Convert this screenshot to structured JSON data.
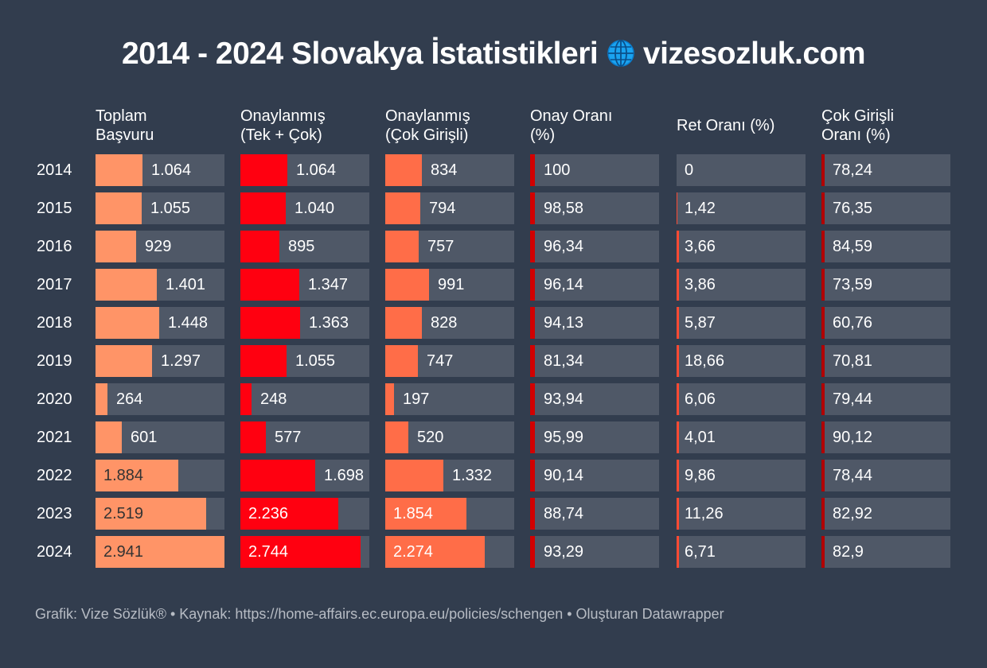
{
  "title": "2014 - 2024 Slovakya İstatistikleri",
  "title_suffix": "vizesozluk.com",
  "globe_icon": "globe-icon",
  "footer": "Grafik: Vize Sözlük® • Kaynak: https://home-affairs.ec.europa.eu/policies/schengen • Oluşturan Datawrapper",
  "colors": {
    "background": "#323d4e",
    "cell_bg": "#4f5867",
    "toplam": "#ff9467",
    "onay_tek_cok": "#ff0010",
    "onay_cok": "#ff6d48",
    "onay_orani": "#d20000",
    "ret_orani": "#ff4a33",
    "cok_orani": "#b00000"
  },
  "chart_data": {
    "type": "table",
    "title": "2014 - 2024 Slovakya İstatistikleri",
    "categories": [
      "2014",
      "2015",
      "2016",
      "2017",
      "2018",
      "2019",
      "2020",
      "2021",
      "2022",
      "2023",
      "2024"
    ],
    "columns": [
      {
        "key": "toplam",
        "header_line1": "Toplam",
        "header_line2": "Başvuru",
        "kind": "bar",
        "values": [
          1064,
          1055,
          929,
          1401,
          1448,
          1297,
          264,
          601,
          1884,
          2519,
          2941
        ],
        "labels": [
          "1.064",
          "1.055",
          "929",
          "1.401",
          "1.448",
          "1.297",
          "264",
          "601",
          "1.884",
          "2.519",
          "2.941"
        ]
      },
      {
        "key": "onay_tek_cok",
        "header_line1": "Onaylanmış",
        "header_line2": "(Tek + Çok)",
        "kind": "bar",
        "values": [
          1064,
          1040,
          895,
          1347,
          1363,
          1055,
          248,
          577,
          1698,
          2236,
          2744
        ],
        "labels": [
          "1.064",
          "1.040",
          "895",
          "1.347",
          "1.363",
          "1.055",
          "248",
          "577",
          "1.698",
          "2.236",
          "2.744"
        ]
      },
      {
        "key": "onay_cok",
        "header_line1": "Onaylanmış",
        "header_line2": "(Çok Girişli)",
        "kind": "bar",
        "values": [
          834,
          794,
          757,
          991,
          828,
          747,
          197,
          520,
          1332,
          1854,
          2274
        ],
        "labels": [
          "834",
          "794",
          "757",
          "991",
          "828",
          "747",
          "197",
          "520",
          "1.332",
          "1.854",
          "2.274"
        ]
      },
      {
        "key": "onay_orani",
        "header_line1": "Onay Oranı",
        "header_line2": "(%)",
        "kind": "marker",
        "values": [
          100,
          98.58,
          96.34,
          96.14,
          94.13,
          81.34,
          93.94,
          95.99,
          90.14,
          88.74,
          93.29
        ],
        "labels": [
          "100",
          "98,58",
          "96,34",
          "96,14",
          "94,13",
          "81,34",
          "93,94",
          "95,99",
          "90,14",
          "88,74",
          "93,29"
        ]
      },
      {
        "key": "ret_orani",
        "header_line1": "Ret Oranı (%)",
        "header_line2": "",
        "kind": "marker",
        "values": [
          0,
          1.42,
          3.66,
          3.86,
          5.87,
          18.66,
          6.06,
          4.01,
          9.86,
          11.26,
          6.71
        ],
        "labels": [
          "0",
          "1,42",
          "3,66",
          "3,86",
          "5,87",
          "18,66",
          "6,06",
          "4,01",
          "9,86",
          "11,26",
          "6,71"
        ]
      },
      {
        "key": "cok_orani",
        "header_line1": "Çok Girişli",
        "header_line2": "Oranı (%)",
        "kind": "marker",
        "values": [
          78.24,
          76.35,
          84.59,
          73.59,
          60.76,
          70.81,
          79.44,
          90.12,
          78.44,
          82.92,
          82.9
        ],
        "labels": [
          "78,24",
          "76,35",
          "84,59",
          "73,59",
          "60,76",
          "70,81",
          "79,44",
          "90,12",
          "78,44",
          "82,92",
          "82,9"
        ]
      }
    ]
  }
}
